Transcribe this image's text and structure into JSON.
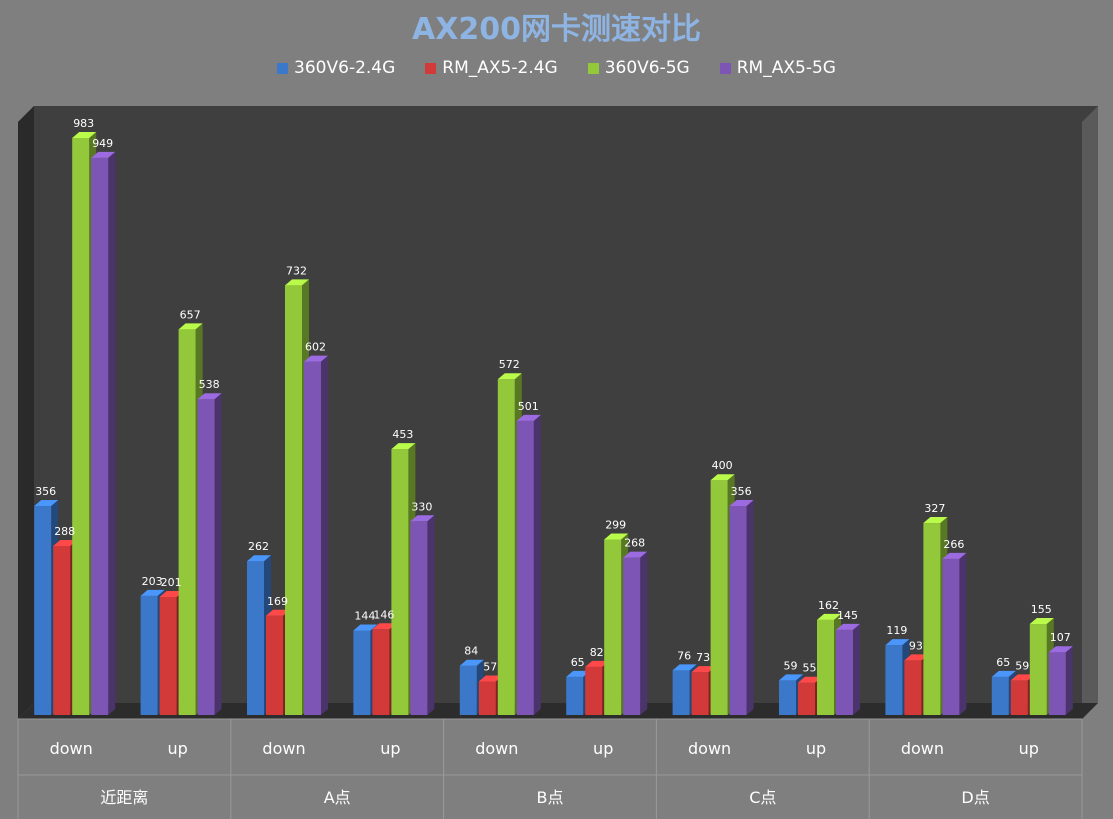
{
  "chart_data": {
    "type": "bar",
    "title": "AX200网卡测速对比",
    "groups": [
      "近距离",
      "A点",
      "B点",
      "C点",
      "D点"
    ],
    "subcategories": [
      "down",
      "up"
    ],
    "categories": [
      "近距离 down",
      "近距离 up",
      "A点 down",
      "A点 up",
      "B点 down",
      "B点 up",
      "C点 down",
      "C点 up",
      "D点 down",
      "D点 up"
    ],
    "series": [
      {
        "name": "360V6-2.4G",
        "color": "#3b78c9",
        "values": [
          356,
          203,
          262,
          144,
          84,
          65,
          76,
          59,
          119,
          65
        ]
      },
      {
        "name": "RM_AX5-2.4G",
        "color": "#d23a3a",
        "values": [
          288,
          201,
          169,
          146,
          57,
          82,
          73,
          55,
          93,
          59
        ]
      },
      {
        "name": "360V6-5G",
        "color": "#94c83b",
        "values": [
          983,
          657,
          732,
          453,
          572,
          299,
          400,
          162,
          327,
          155
        ]
      },
      {
        "name": "RM_AX5-5G",
        "color": "#7d55b4",
        "values": [
          949,
          538,
          602,
          330,
          501,
          268,
          356,
          145,
          266,
          107
        ]
      }
    ],
    "xlabel": "",
    "ylabel": "",
    "ylim": [
      0,
      1000
    ],
    "grid": false,
    "legend": "top"
  }
}
